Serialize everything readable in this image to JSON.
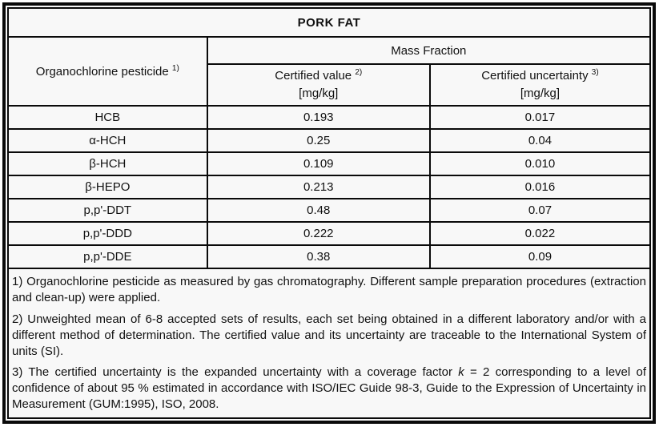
{
  "title": "PORK FAT",
  "table": {
    "col1_header": "Organochlorine pesticide",
    "col1_header_sup": "1)",
    "group_header": "Mass Fraction",
    "columns": [
      {
        "label": "Certified value",
        "sup": "2)",
        "unit": "[mg/kg]"
      },
      {
        "label": "Certified uncertainty",
        "sup": "3)",
        "unit": "[mg/kg]"
      }
    ],
    "rows": [
      {
        "name": "HCB",
        "value": "0.193",
        "uncertainty": "0.017"
      },
      {
        "name": "α-HCH",
        "value": "0.25",
        "uncertainty": "0.04"
      },
      {
        "name": "β-HCH",
        "value": "0.109",
        "uncertainty": "0.010"
      },
      {
        "name": "β-HEPO",
        "value": "0.213",
        "uncertainty": "0.016"
      },
      {
        "name": "p,p'-DDT",
        "value": "0.48",
        "uncertainty": "0.07"
      },
      {
        "name": "p,p'-DDD",
        "value": "0.222",
        "uncertainty": "0.022"
      },
      {
        "name": "p,p'-DDE",
        "value": "0.38",
        "uncertainty": "0.09"
      }
    ]
  },
  "footnotes": {
    "note1": "1) Organochlorine pesticide as measured by gas chromatography. Different sample preparation procedures (extraction and clean-up) were applied.",
    "note2": "2) Unweighted mean of 6-8 accepted sets of results, each set being obtained in a different laboratory and/or with a different method of determination. The certified value and its uncertainty are traceable to the International System of units (SI).",
    "note3": {
      "before": "3) The certified uncertainty is the expanded uncertainty with a coverage factor ",
      "k_symbol": "k",
      "after": " = 2 corresponding to a level of confidence of about 95 % estimated in accordance with ISO/IEC Guide 98-3, Guide to the Expression of Uncertainty in Measurement (GUM:1995), ISO, 2008."
    }
  },
  "colors": {
    "border": "#0a0a0a",
    "cell_background": "#f8f8f8",
    "text": "#111111"
  }
}
